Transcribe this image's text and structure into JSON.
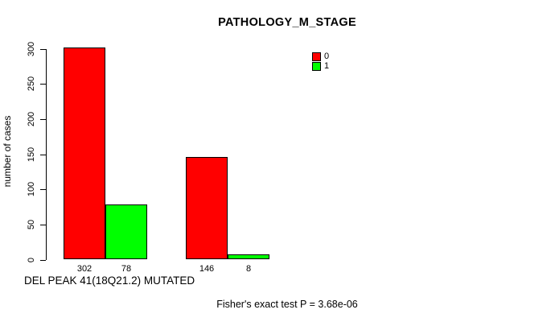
{
  "chart_data": {
    "type": "bar",
    "title": "PATHOLOGY_M_STAGE",
    "ylabel": "number of cases",
    "xlabel": "DEL PEAK 41(18Q21.2) MUTATED",
    "annotation": "Fisher's exact test P = 3.68e-06",
    "ylim": [
      0,
      300
    ],
    "yticks": [
      0,
      50,
      100,
      150,
      200,
      250,
      300
    ],
    "series": [
      {
        "name": "0",
        "color": "#ff0000",
        "values": [
          302,
          146
        ]
      },
      {
        "name": "1",
        "color": "#00ff00",
        "values": [
          78,
          8
        ]
      }
    ],
    "bar_value_labels": [
      "302",
      "78",
      "146",
      "8"
    ],
    "legend_position": "top-right",
    "grid": false,
    "background": "#ffffff",
    "axis_color": "#000000"
  }
}
